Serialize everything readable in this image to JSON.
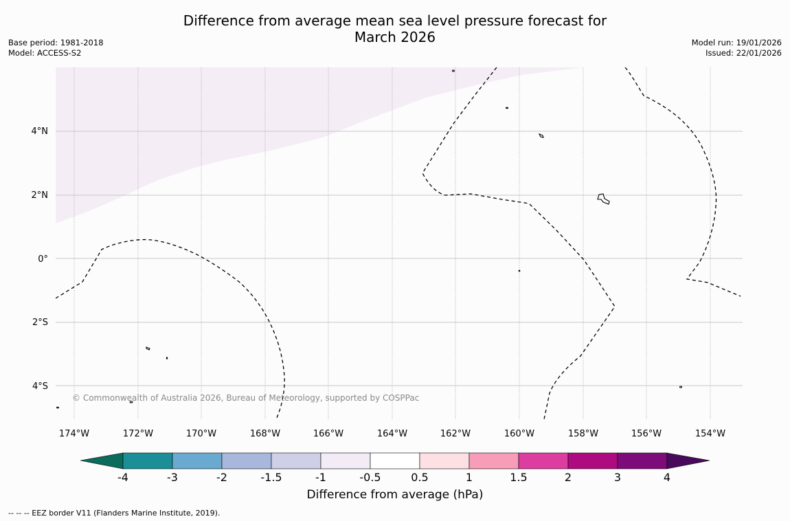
{
  "header": {
    "title_line1": "Difference from average mean sea level pressure forecast for",
    "title_line2": "March 2026",
    "base_period": "Base period: 1981-2018",
    "model": "Model: ACCESS-S2",
    "model_run": "Model run: 19/01/2026",
    "issued": "Issued: 22/01/2026"
  },
  "map": {
    "latitude_labels": [
      "4°N",
      "2°N",
      "0°",
      "2°S",
      "4°S"
    ],
    "longitude_labels": [
      "174°W",
      "172°W",
      "170°W",
      "168°W",
      "166°W",
      "164°W",
      "162°W",
      "160°W",
      "158°W",
      "156°W",
      "154°W"
    ],
    "copyright": "© Commonwealth of Australia 2026, Bureau of Meteorology, supported by COSPPac",
    "anomaly_region_fill": "#f4edf5",
    "anomaly_region_category": "-1 to -0.5 hPa"
  },
  "colorbar": {
    "title": "Difference from average (hPa)",
    "tick_labels": [
      "-4",
      "-3",
      "-2",
      "-1.5",
      "-1",
      "-0.5",
      "0.5",
      "1",
      "1.5",
      "2",
      "3",
      "4"
    ],
    "under_color": "#0b6b5c",
    "over_color": "#4a0a5c",
    "colors": [
      "#1a8f98",
      "#6aaad0",
      "#a8b8dc",
      "#cfd0e8",
      "#f3ecf7",
      "#ffffff",
      "#fde0e3",
      "#f79db9",
      "#dc3d9f",
      "#ad0b7f",
      "#7d0b79"
    ]
  },
  "footer": {
    "legend": "--  --  -- EEZ border V11 (Flanders Marine Institute, 2019)."
  }
}
